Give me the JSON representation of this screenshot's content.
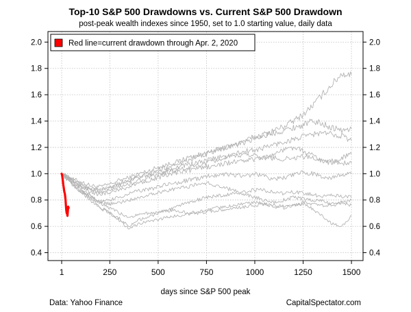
{
  "chart_data": {
    "type": "line",
    "title": "Top-10 S&P 500 Drawdowns vs. Current S&P 500 Drawdown",
    "subtitle": "post-peak wealth indexes since 1950, set to 1.0 starting value, daily data",
    "xlabel": "days since S&P 500 peak",
    "ylabel": "",
    "xlim": [
      -70,
      1560
    ],
    "ylim": [
      0.34,
      2.08
    ],
    "x_ticks": [
      1,
      250,
      500,
      750,
      1000,
      1250,
      1500
    ],
    "x_tick_labels": [
      "1",
      "250",
      "500",
      "750",
      "1000",
      "1250",
      "1500"
    ],
    "y_ticks": [
      0.4,
      0.6,
      0.8,
      1.0,
      1.2,
      1.4,
      1.6,
      1.8,
      2.0
    ],
    "y_tick_labels": [
      "0.4",
      "0.6",
      "0.8",
      "1.0",
      "1.2",
      "1.4",
      "1.6",
      "1.8",
      "2.0"
    ],
    "grid": true,
    "legend_position": "top-left",
    "legend": [
      {
        "label": "Red line=current drawdown through Apr. 2, 2020",
        "color": "#ff0000"
      }
    ],
    "colors": {
      "historical": "#b3b3b3",
      "current": "#ff0000",
      "grid": "#bdbdbd"
    },
    "series": [
      {
        "x": [
          1,
          50,
          100,
          150,
          200,
          250,
          300,
          350,
          400,
          450,
          500,
          550,
          600,
          650,
          700,
          750,
          800,
          850,
          900,
          950,
          1000,
          1050,
          1100,
          1150,
          1200,
          1250,
          1300,
          1350,
          1400,
          1450,
          1500
        ],
        "y": [
          1.0,
          0.96,
          0.94,
          0.91,
          0.9,
          0.92,
          0.95,
          0.97,
          1.0,
          1.02,
          1.05,
          1.07,
          1.09,
          1.12,
          1.14,
          1.15,
          1.18,
          1.2,
          1.22,
          1.25,
          1.28,
          1.3,
          1.33,
          1.36,
          1.4,
          1.45,
          1.52,
          1.6,
          1.68,
          1.76,
          1.75
        ]
      },
      {
        "x": [
          1,
          50,
          100,
          150,
          200,
          250,
          300,
          350,
          400,
          450,
          500,
          550,
          600,
          650,
          700,
          750,
          800,
          850,
          900,
          950,
          1000,
          1050,
          1100,
          1150,
          1200,
          1250,
          1300,
          1350,
          1400,
          1450,
          1500
        ],
        "y": [
          1.0,
          0.95,
          0.9,
          0.88,
          0.87,
          0.89,
          0.92,
          0.95,
          0.98,
          1.0,
          1.03,
          1.05,
          1.08,
          1.1,
          1.13,
          1.15,
          1.17,
          1.2,
          1.22,
          1.24,
          1.27,
          1.29,
          1.31,
          1.33,
          1.35,
          1.37,
          1.4,
          1.38,
          1.35,
          1.33,
          1.34
        ]
      },
      {
        "x": [
          1,
          50,
          100,
          150,
          200,
          250,
          300,
          350,
          400,
          450,
          500,
          550,
          600,
          650,
          700,
          750,
          800,
          850,
          900,
          950,
          1000,
          1050,
          1100,
          1150,
          1200,
          1250,
          1300,
          1350,
          1400,
          1450,
          1500
        ],
        "y": [
          1.0,
          0.96,
          0.92,
          0.89,
          0.88,
          0.9,
          0.93,
          0.95,
          0.97,
          0.99,
          1.01,
          1.03,
          1.05,
          1.07,
          1.08,
          1.1,
          1.12,
          1.13,
          1.15,
          1.17,
          1.18,
          1.2,
          1.22,
          1.24,
          1.26,
          1.28,
          1.3,
          1.31,
          1.3,
          1.29,
          1.25
        ]
      },
      {
        "x": [
          1,
          50,
          100,
          150,
          200,
          250,
          300,
          350,
          400,
          450,
          500,
          550,
          600,
          650,
          700,
          750,
          800,
          850,
          900,
          950,
          1000,
          1050,
          1100,
          1150,
          1200,
          1250,
          1300,
          1350,
          1400,
          1450,
          1500
        ],
        "y": [
          1.0,
          0.95,
          0.92,
          0.88,
          0.85,
          0.87,
          0.9,
          0.92,
          0.95,
          0.97,
          0.99,
          1.01,
          1.03,
          1.04,
          1.06,
          1.08,
          1.1,
          1.12,
          1.13,
          1.15,
          1.14,
          1.12,
          1.15,
          1.18,
          1.2,
          1.17,
          1.14,
          1.1,
          1.08,
          1.12,
          1.15
        ]
      },
      {
        "x": [
          1,
          50,
          100,
          150,
          200,
          250,
          300,
          350,
          400,
          450,
          500,
          550,
          600,
          650,
          700,
          750,
          800,
          850,
          900,
          950,
          1000,
          1050,
          1100,
          1150,
          1200,
          1250,
          1300,
          1350,
          1400,
          1450,
          1500
        ],
        "y": [
          1.0,
          0.94,
          0.9,
          0.86,
          0.84,
          0.86,
          0.88,
          0.9,
          0.93,
          0.95,
          0.97,
          0.99,
          1.01,
          1.02,
          1.04,
          1.05,
          1.06,
          1.08,
          1.09,
          1.1,
          1.11,
          1.12,
          1.12,
          1.11,
          1.12,
          1.13,
          1.12,
          1.1,
          1.1,
          1.08,
          1.08
        ]
      },
      {
        "x": [
          1,
          50,
          100,
          150,
          200,
          250,
          300,
          350,
          400,
          450,
          500,
          550,
          600,
          650,
          700,
          750,
          800,
          850,
          900,
          950,
          1000,
          1050,
          1100,
          1150,
          1200,
          1250,
          1300,
          1350,
          1400,
          1450,
          1500
        ],
        "y": [
          1.0,
          0.93,
          0.87,
          0.82,
          0.78,
          0.8,
          0.82,
          0.85,
          0.87,
          0.88,
          0.9,
          0.92,
          0.93,
          0.95,
          0.96,
          0.98,
          0.99,
          1.0,
          0.99,
          0.98,
          1.0,
          0.98,
          0.96,
          0.97,
          0.99,
          1.01,
          1.0,
          0.98,
          0.97,
          0.99,
          1.0
        ]
      },
      {
        "x": [
          1,
          50,
          100,
          150,
          200,
          250,
          300,
          350,
          400,
          450,
          500,
          550,
          600,
          650,
          700,
          750,
          800,
          850,
          900,
          950,
          1000,
          1050,
          1100,
          1150,
          1200,
          1250,
          1300,
          1350,
          1400,
          1450,
          1500
        ],
        "y": [
          1.0,
          0.94,
          0.88,
          0.83,
          0.79,
          0.77,
          0.78,
          0.8,
          0.82,
          0.84,
          0.86,
          0.87,
          0.89,
          0.9,
          0.92,
          0.93,
          0.91,
          0.89,
          0.87,
          0.86,
          0.88,
          0.87,
          0.86,
          0.85,
          0.86,
          0.85,
          0.84,
          0.83,
          0.84,
          0.83,
          0.82
        ]
      },
      {
        "x": [
          1,
          50,
          100,
          150,
          200,
          250,
          300,
          350,
          400,
          450,
          500,
          550,
          600,
          650,
          700,
          750,
          800,
          850,
          900,
          950,
          1000,
          1050,
          1100,
          1150,
          1200,
          1250,
          1300,
          1350,
          1400,
          1450,
          1500
        ],
        "y": [
          1.0,
          0.93,
          0.86,
          0.8,
          0.74,
          0.7,
          0.66,
          0.6,
          0.65,
          0.67,
          0.7,
          0.72,
          0.75,
          0.78,
          0.8,
          0.82,
          0.83,
          0.84,
          0.85,
          0.84,
          0.82,
          0.8,
          0.78,
          0.8,
          0.82,
          0.81,
          0.8,
          0.79,
          0.77,
          0.78,
          0.76
        ]
      },
      {
        "x": [
          1,
          50,
          100,
          150,
          200,
          250,
          300,
          350,
          400,
          450,
          500,
          550,
          600,
          650,
          700,
          750,
          800,
          850,
          900,
          950,
          1000,
          1050,
          1100,
          1150,
          1200,
          1250,
          1300,
          1350,
          1400,
          1450,
          1500
        ],
        "y": [
          1.0,
          0.95,
          0.89,
          0.83,
          0.78,
          0.74,
          0.7,
          0.67,
          0.69,
          0.7,
          0.71,
          0.72,
          0.72,
          0.7,
          0.71,
          0.72,
          0.74,
          0.75,
          0.76,
          0.77,
          0.78,
          0.77,
          0.76,
          0.75,
          0.76,
          0.78,
          0.77,
          0.76,
          0.76,
          0.78,
          0.8
        ]
      },
      {
        "x": [
          1,
          50,
          100,
          150,
          200,
          250,
          300,
          350,
          400,
          450,
          500,
          550,
          600,
          650,
          700,
          750,
          800,
          850,
          900,
          950,
          1000,
          1050,
          1100,
          1150,
          1200,
          1250,
          1300,
          1350,
          1400,
          1450,
          1500
        ],
        "y": [
          1.0,
          0.94,
          0.87,
          0.81,
          0.75,
          0.7,
          0.64,
          0.58,
          0.62,
          0.64,
          0.65,
          0.67,
          0.68,
          0.69,
          0.7,
          0.71,
          0.72,
          0.73,
          0.74,
          0.75,
          0.76,
          0.77,
          0.75,
          0.74,
          0.76,
          0.77,
          0.73,
          0.68,
          0.62,
          0.6,
          0.68
        ]
      }
    ],
    "current": {
      "x": [
        1,
        3,
        5,
        7,
        9,
        11,
        13,
        15,
        17,
        19,
        21,
        23,
        25,
        27,
        29,
        31,
        33,
        35,
        37
      ],
      "y": [
        1.0,
        0.99,
        0.97,
        0.95,
        0.92,
        0.9,
        0.88,
        0.86,
        0.85,
        0.83,
        0.8,
        0.76,
        0.72,
        0.7,
        0.7,
        0.68,
        0.72,
        0.75,
        0.74
      ]
    }
  },
  "footer": {
    "source": "Data: Yahoo Finance",
    "site": "CapitalSpectator.com"
  }
}
